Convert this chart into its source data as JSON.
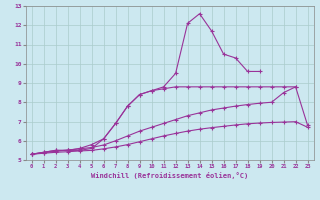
{
  "xlabel": "Windchill (Refroidissement éolien,°C)",
  "ylabel": "",
  "background_color": "#cce8f0",
  "grid_color": "#aacccc",
  "line_color": "#993399",
  "xlim": [
    -0.5,
    23.5
  ],
  "ylim": [
    5,
    13
  ],
  "xticks": [
    0,
    1,
    2,
    3,
    4,
    5,
    6,
    7,
    8,
    9,
    10,
    11,
    12,
    13,
    14,
    15,
    16,
    17,
    18,
    19,
    20,
    21,
    22,
    23
  ],
  "yticks": [
    5,
    6,
    7,
    8,
    9,
    10,
    11,
    12,
    13
  ],
  "lines": [
    {
      "x": [
        0,
        1,
        2,
        3,
        4,
        5,
        6,
        7,
        8,
        9,
        10,
        11,
        12,
        13,
        14,
        15,
        16,
        17,
        18,
        19
      ],
      "y": [
        5.3,
        5.4,
        5.5,
        5.5,
        5.5,
        5.6,
        6.1,
        6.9,
        7.8,
        8.4,
        8.6,
        8.8,
        9.5,
        12.1,
        12.6,
        11.7,
        10.5,
        10.3,
        9.6,
        9.6
      ]
    },
    {
      "x": [
        0,
        1,
        2,
        3,
        4,
        5,
        6,
        7,
        8,
        9,
        10,
        11,
        12,
        13,
        14,
        15,
        16,
        17,
        18,
        19,
        20,
        21,
        22
      ],
      "y": [
        5.3,
        5.4,
        5.5,
        5.5,
        5.6,
        5.8,
        6.1,
        6.9,
        7.8,
        8.4,
        8.6,
        8.7,
        8.8,
        8.8,
        8.8,
        8.8,
        8.8,
        8.8,
        8.8,
        8.8,
        8.8,
        8.8,
        8.8
      ]
    },
    {
      "x": [
        0,
        1,
        2,
        3,
        4,
        5,
        6,
        7,
        8,
        9,
        10,
        11,
        12,
        13,
        14,
        15,
        16,
        17,
        18,
        19,
        20,
        21,
        22,
        23
      ],
      "y": [
        5.3,
        5.38,
        5.45,
        5.52,
        5.58,
        5.65,
        5.78,
        6.0,
        6.25,
        6.5,
        6.7,
        6.9,
        7.1,
        7.3,
        7.45,
        7.6,
        7.7,
        7.8,
        7.88,
        7.95,
        8.0,
        8.5,
        8.8,
        6.8
      ]
    },
    {
      "x": [
        0,
        1,
        2,
        3,
        4,
        5,
        6,
        7,
        8,
        9,
        10,
        11,
        12,
        13,
        14,
        15,
        16,
        17,
        18,
        19,
        20,
        21,
        22,
        23
      ],
      "y": [
        5.3,
        5.35,
        5.4,
        5.43,
        5.47,
        5.5,
        5.58,
        5.68,
        5.8,
        5.95,
        6.1,
        6.25,
        6.38,
        6.5,
        6.6,
        6.68,
        6.75,
        6.82,
        6.88,
        6.92,
        6.95,
        6.97,
        6.99,
        6.7
      ]
    }
  ]
}
